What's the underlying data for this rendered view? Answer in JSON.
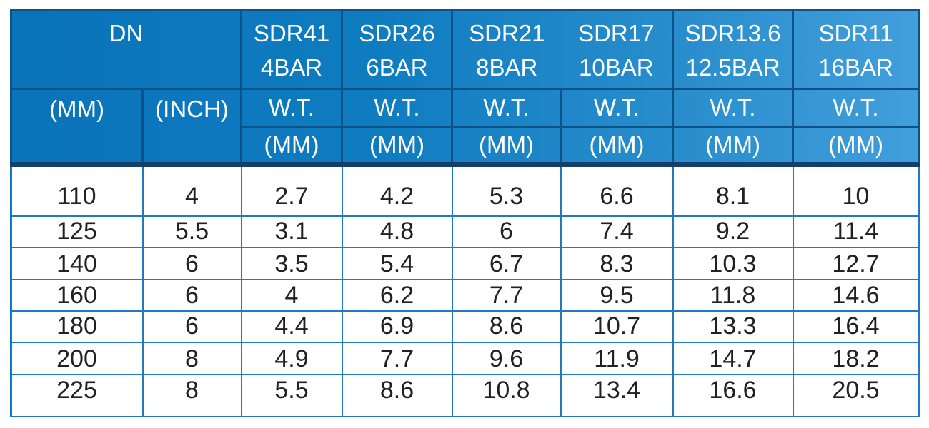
{
  "table": {
    "title_semantic": "pipe-sdr-wall-thickness-table",
    "header": {
      "dn_label": "DN",
      "dn_units": {
        "mm": "(MM)",
        "inch": "(INCH)"
      },
      "wt_label": "W.T.",
      "wt_unit": "(MM)",
      "sdr_columns": [
        {
          "sdr": "SDR41",
          "bar": "4BAR"
        },
        {
          "sdr": "SDR26",
          "bar": "6BAR"
        },
        {
          "sdr": "SDR21",
          "bar": "8BAR"
        },
        {
          "sdr": "SDR17",
          "bar": "10BAR"
        },
        {
          "sdr": "SDR13.6",
          "bar": "12.5BAR"
        },
        {
          "sdr": "SDR11",
          "bar": "16BAR"
        }
      ]
    },
    "rows": [
      {
        "dn_mm": "110",
        "dn_inch": "4",
        "wt": [
          "2.7",
          "4.2",
          "5.3",
          "6.6",
          "8.1",
          "10"
        ]
      },
      {
        "dn_mm": "125",
        "dn_inch": "5.5",
        "wt": [
          "3.1",
          "4.8",
          "6",
          "7.4",
          "9.2",
          "11.4"
        ]
      },
      {
        "dn_mm": "140",
        "dn_inch": "6",
        "wt": [
          "3.5",
          "5.4",
          "6.7",
          "8.3",
          "10.3",
          "12.7"
        ]
      },
      {
        "dn_mm": "160",
        "dn_inch": "6",
        "wt": [
          "4",
          "6.2",
          "7.7",
          "9.5",
          "11.8",
          "14.6"
        ]
      },
      {
        "dn_mm": "180",
        "dn_inch": "6",
        "wt": [
          "4.4",
          "6.9",
          "8.6",
          "10.7",
          "13.3",
          "16.4"
        ]
      },
      {
        "dn_mm": "200",
        "dn_inch": "8",
        "wt": [
          "4.9",
          "7.7",
          "9.6",
          "11.9",
          "14.7",
          "18.2"
        ]
      },
      {
        "dn_mm": "225",
        "dn_inch": "8",
        "wt": [
          "5.5",
          "8.6",
          "10.8",
          "13.4",
          "16.6",
          "20.5"
        ]
      }
    ],
    "colors": {
      "header_gradient_left": "#0a73b9",
      "header_gradient_right": "#419fdb",
      "header_border": "#0f5189",
      "dark_divider": "#143e6b",
      "grid_blue": "#2478bc",
      "header_text": "#ffffff",
      "body_text": "#212121"
    }
  }
}
